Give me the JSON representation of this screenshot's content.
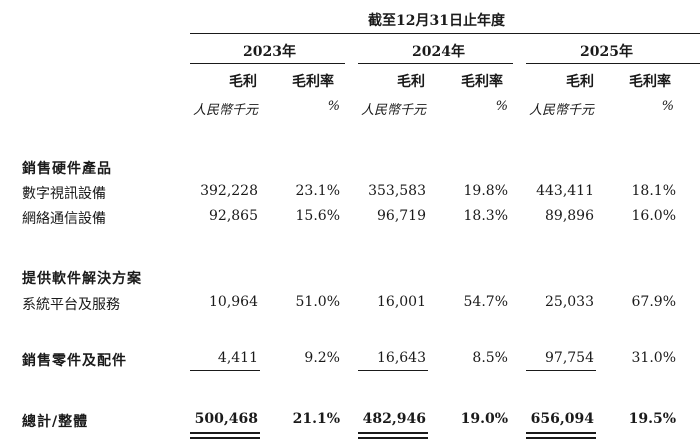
{
  "table": {
    "period_header": "截至12月31日止年度",
    "years": [
      "2023年",
      "2024年",
      "2025年"
    ],
    "col_labels": {
      "gross_profit": "毛利",
      "gross_margin": "毛利率"
    },
    "units": {
      "gross_profit": "人民幣千元",
      "gross_margin": "%"
    },
    "sections": [
      {
        "title": "銷售硬件產品",
        "rows": [
          {
            "label": "數字視訊設備",
            "values": [
              "392,228",
              "23.1%",
              "353,583",
              "19.8%",
              "443,411",
              "18.1%"
            ]
          },
          {
            "label": "網絡通信設備",
            "values": [
              "92,865",
              "15.6%",
              "96,719",
              "18.3%",
              "89,896",
              "16.0%"
            ]
          }
        ]
      },
      {
        "title": "提供軟件解決方案",
        "rows": [
          {
            "label": "系統平台及服務",
            "values": [
              "10,964",
              "51.0%",
              "16,001",
              "54.7%",
              "25,033",
              "67.9%"
            ]
          }
        ]
      }
    ],
    "parts_row": {
      "label": "銷售零件及配件",
      "values": [
        "4,411",
        "9.2%",
        "16,643",
        "8.5%",
        "97,754",
        "31.0%"
      ]
    },
    "total_row": {
      "label": "總計/整體",
      "values": [
        "500,468",
        "21.1%",
        "482,946",
        "19.0%",
        "656,094",
        "19.5%"
      ]
    }
  }
}
